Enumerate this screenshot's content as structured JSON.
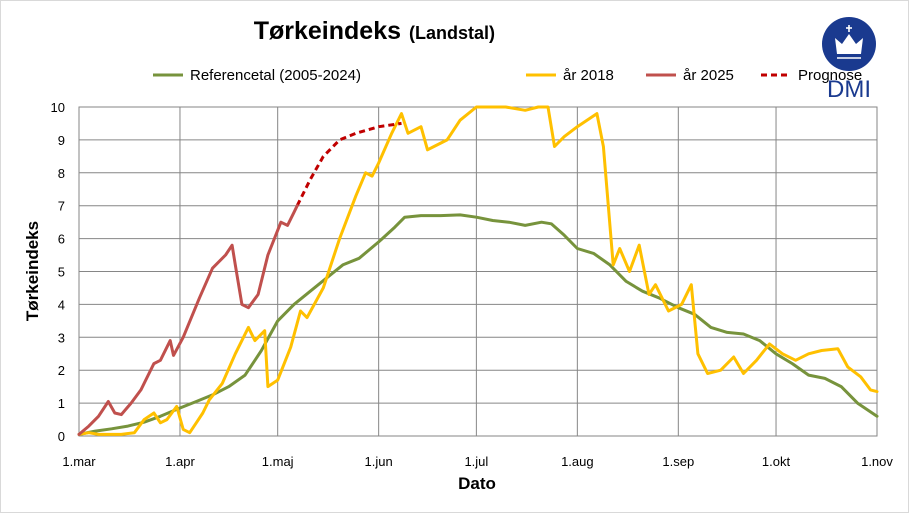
{
  "chart_data": {
    "type": "line",
    "title": "Tørkeindeks",
    "subtitle": "(Landstal)",
    "xlabel": "Dato",
    "ylabel": "Tørkeindeks",
    "ylim": [
      0,
      10
    ],
    "xlim": [
      "03-01",
      "11-01"
    ],
    "grid": true,
    "legend_position": "top",
    "x_ticks": [
      {
        "label": "1.mar",
        "date": "03-01"
      },
      {
        "label": "1.apr",
        "date": "04-01"
      },
      {
        "label": "1.maj",
        "date": "05-01"
      },
      {
        "label": "1.jun",
        "date": "06-01"
      },
      {
        "label": "1.jul",
        "date": "07-01"
      },
      {
        "label": "1.aug",
        "date": "08-01"
      },
      {
        "label": "1.sep",
        "date": "09-01"
      },
      {
        "label": "1.okt",
        "date": "10-01"
      },
      {
        "label": "1.nov",
        "date": "11-01"
      }
    ],
    "y_ticks": [
      "0",
      "1",
      "2",
      "3",
      "4",
      "5",
      "6",
      "7",
      "8",
      "9",
      "10"
    ],
    "series": [
      {
        "name": "Referencetal (2005-2024)",
        "color": "#77933c",
        "style": "solid",
        "points": [
          [
            "03-01",
            0.05
          ],
          [
            "03-06",
            0.15
          ],
          [
            "03-11",
            0.22
          ],
          [
            "03-16",
            0.3
          ],
          [
            "03-21",
            0.42
          ],
          [
            "03-26",
            0.6
          ],
          [
            "04-01",
            0.85
          ],
          [
            "04-06",
            1.05
          ],
          [
            "04-11",
            1.25
          ],
          [
            "04-16",
            1.5
          ],
          [
            "04-21",
            1.85
          ],
          [
            "04-26",
            2.6
          ],
          [
            "05-01",
            3.5
          ],
          [
            "05-06",
            4.0
          ],
          [
            "05-11",
            4.4
          ],
          [
            "05-16",
            4.8
          ],
          [
            "05-21",
            5.2
          ],
          [
            "05-26",
            5.4
          ],
          [
            "06-01",
            5.9
          ],
          [
            "06-06",
            6.35
          ],
          [
            "06-09",
            6.65
          ],
          [
            "06-14",
            6.7
          ],
          [
            "06-20",
            6.7
          ],
          [
            "06-26",
            6.72
          ],
          [
            "07-01",
            6.65
          ],
          [
            "07-06",
            6.55
          ],
          [
            "07-11",
            6.5
          ],
          [
            "07-16",
            6.4
          ],
          [
            "07-21",
            6.5
          ],
          [
            "07-24",
            6.45
          ],
          [
            "07-28",
            6.1
          ],
          [
            "08-01",
            5.7
          ],
          [
            "08-06",
            5.55
          ],
          [
            "08-11",
            5.2
          ],
          [
            "08-16",
            4.7
          ],
          [
            "08-21",
            4.4
          ],
          [
            "08-26",
            4.2
          ],
          [
            "09-01",
            3.9
          ],
          [
            "09-06",
            3.7
          ],
          [
            "09-11",
            3.3
          ],
          [
            "09-16",
            3.15
          ],
          [
            "09-21",
            3.1
          ],
          [
            "09-26",
            2.9
          ],
          [
            "10-01",
            2.5
          ],
          [
            "10-06",
            2.2
          ],
          [
            "10-11",
            1.85
          ],
          [
            "10-16",
            1.75
          ],
          [
            "10-21",
            1.5
          ],
          [
            "10-26",
            1.0
          ],
          [
            "11-01",
            0.6
          ]
        ]
      },
      {
        "name": "år 2018",
        "color": "#ffc000",
        "style": "solid",
        "points": [
          [
            "03-01",
            0.05
          ],
          [
            "03-04",
            0.1
          ],
          [
            "03-07",
            0.05
          ],
          [
            "03-14",
            0.05
          ],
          [
            "03-18",
            0.1
          ],
          [
            "03-21",
            0.5
          ],
          [
            "03-24",
            0.7
          ],
          [
            "03-26",
            0.4
          ],
          [
            "03-28",
            0.5
          ],
          [
            "03-31",
            0.9
          ],
          [
            "04-02",
            0.2
          ],
          [
            "04-04",
            0.1
          ],
          [
            "04-06",
            0.4
          ],
          [
            "04-08",
            0.7
          ],
          [
            "04-10",
            1.1
          ],
          [
            "04-14",
            1.6
          ],
          [
            "04-18",
            2.5
          ],
          [
            "04-22",
            3.3
          ],
          [
            "04-24",
            2.9
          ],
          [
            "04-27",
            3.2
          ],
          [
            "04-28",
            1.5
          ],
          [
            "05-01",
            1.7
          ],
          [
            "05-05",
            2.7
          ],
          [
            "05-08",
            3.8
          ],
          [
            "05-10",
            3.6
          ],
          [
            "05-15",
            4.5
          ],
          [
            "05-20",
            6.0
          ],
          [
            "05-25",
            7.3
          ],
          [
            "05-28",
            8.0
          ],
          [
            "05-30",
            7.9
          ],
          [
            "06-01",
            8.3
          ],
          [
            "06-05",
            9.2
          ],
          [
            "06-08",
            9.8
          ],
          [
            "06-10",
            9.2
          ],
          [
            "06-14",
            9.4
          ],
          [
            "06-16",
            8.7
          ],
          [
            "06-18",
            8.8
          ],
          [
            "06-22",
            9.0
          ],
          [
            "06-26",
            9.6
          ],
          [
            "07-01",
            10.0
          ],
          [
            "07-10",
            10.0
          ],
          [
            "07-16",
            9.9
          ],
          [
            "07-20",
            10.0
          ],
          [
            "07-23",
            10.0
          ],
          [
            "07-25",
            8.8
          ],
          [
            "07-28",
            9.1
          ],
          [
            "08-01",
            9.4
          ],
          [
            "08-07",
            9.8
          ],
          [
            "08-09",
            8.8
          ],
          [
            "08-12",
            5.2
          ],
          [
            "08-14",
            5.7
          ],
          [
            "08-17",
            5.0
          ],
          [
            "08-20",
            5.8
          ],
          [
            "08-23",
            4.3
          ],
          [
            "08-25",
            4.6
          ],
          [
            "08-29",
            3.8
          ],
          [
            "09-02",
            4.0
          ],
          [
            "09-05",
            4.6
          ],
          [
            "09-07",
            2.5
          ],
          [
            "09-10",
            1.9
          ],
          [
            "09-14",
            2.0
          ],
          [
            "09-18",
            2.4
          ],
          [
            "09-21",
            1.9
          ],
          [
            "09-25",
            2.3
          ],
          [
            "09-29",
            2.8
          ],
          [
            "10-03",
            2.5
          ],
          [
            "10-07",
            2.3
          ],
          [
            "10-11",
            2.5
          ],
          [
            "10-15",
            2.6
          ],
          [
            "10-20",
            2.65
          ],
          [
            "10-23",
            2.1
          ],
          [
            "10-27",
            1.8
          ],
          [
            "10-30",
            1.4
          ],
          [
            "11-01",
            1.35
          ]
        ]
      },
      {
        "name": "år 2025",
        "color": "#c0504d",
        "style": "solid",
        "points": [
          [
            "03-01",
            0.05
          ],
          [
            "03-04",
            0.3
          ],
          [
            "03-07",
            0.6
          ],
          [
            "03-10",
            1.05
          ],
          [
            "03-12",
            0.7
          ],
          [
            "03-14",
            0.65
          ],
          [
            "03-17",
            1.0
          ],
          [
            "03-20",
            1.4
          ],
          [
            "03-24",
            2.2
          ],
          [
            "03-26",
            2.3
          ],
          [
            "03-29",
            2.9
          ],
          [
            "03-30",
            2.45
          ],
          [
            "04-02",
            3.0
          ],
          [
            "04-07",
            4.2
          ],
          [
            "04-11",
            5.1
          ],
          [
            "04-15",
            5.5
          ],
          [
            "04-17",
            5.8
          ],
          [
            "04-18",
            5.2
          ],
          [
            "04-20",
            4.0
          ],
          [
            "04-22",
            3.9
          ],
          [
            "04-25",
            4.3
          ],
          [
            "04-28",
            5.5
          ],
          [
            "05-02",
            6.5
          ],
          [
            "05-04",
            6.4
          ],
          [
            "05-06",
            6.8
          ],
          [
            "05-07",
            7.0
          ]
        ]
      },
      {
        "name": "Prognose",
        "color": "#c00000",
        "style": "dashed",
        "points": [
          [
            "05-07",
            7.0
          ],
          [
            "05-11",
            7.8
          ],
          [
            "05-15",
            8.5
          ],
          [
            "05-20",
            9.0
          ],
          [
            "05-25",
            9.2
          ],
          [
            "06-01",
            9.4
          ],
          [
            "06-08",
            9.5
          ]
        ]
      }
    ]
  },
  "logo": {
    "text": "DMI",
    "color": "#1a3a8f"
  }
}
